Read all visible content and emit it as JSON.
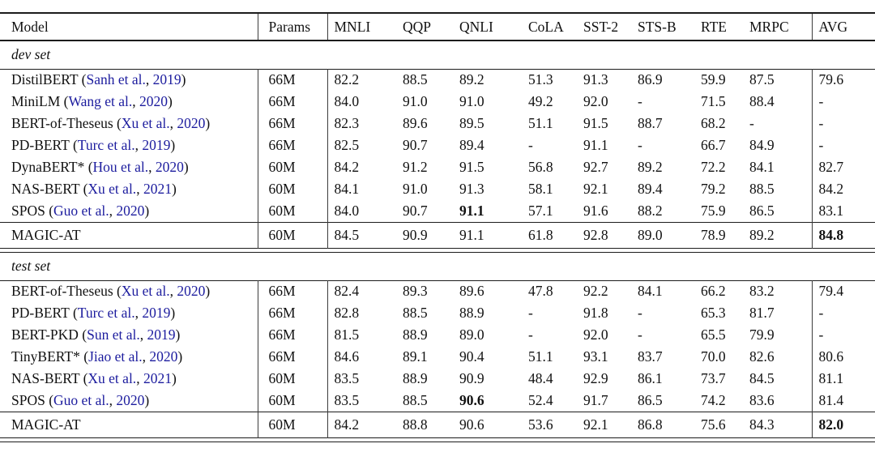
{
  "table": {
    "citation_color": "#1c1c9e",
    "columns": [
      "Model",
      "Params",
      "MNLI",
      "QQP",
      "QNLI",
      "CoLA",
      "SST-2",
      "STS-B",
      "RTE",
      "MRPC",
      "AVG"
    ],
    "sections": [
      {
        "label": "dev set",
        "rows": [
          {
            "model": "DistilBERT",
            "cite": {
              "authors": "Sanh et al.",
              "year": "2019"
            },
            "params": "66M",
            "scores": [
              "82.2",
              "88.5",
              "89.2",
              "51.3",
              "91.3",
              "86.9",
              "59.9",
              "87.5"
            ],
            "avg": "79.6",
            "bold": [],
            "avg_bold": false
          },
          {
            "model": "MiniLM",
            "cite": {
              "authors": "Wang et al.",
              "year": "2020"
            },
            "params": "66M",
            "scores": [
              "84.0",
              "91.0",
              "91.0",
              "49.2",
              "92.0",
              "-",
              "71.5",
              "88.4"
            ],
            "avg": "-",
            "bold": [],
            "avg_bold": false
          },
          {
            "model": "BERT-of-Theseus",
            "cite": {
              "authors": "Xu et al.",
              "year": "2020"
            },
            "params": "66M",
            "scores": [
              "82.3",
              "89.6",
              "89.5",
              "51.1",
              "91.5",
              "88.7",
              "68.2",
              "-"
            ],
            "avg": "-",
            "bold": [],
            "avg_bold": false
          },
          {
            "model": "PD-BERT",
            "cite": {
              "authors": "Turc et al.",
              "year": "2019"
            },
            "params": "66M",
            "scores": [
              "82.5",
              "90.7",
              "89.4",
              "-",
              "91.1",
              "-",
              "66.7",
              "84.9"
            ],
            "avg": "-",
            "bold": [],
            "avg_bold": false
          },
          {
            "model": "DynaBERT*",
            "cite": {
              "authors": "Hou et al.",
              "year": "2020"
            },
            "params": "60M",
            "scores": [
              "84.2",
              "91.2",
              "91.5",
              "56.8",
              "92.7",
              "89.2",
              "72.2",
              "84.1"
            ],
            "avg": "82.7",
            "bold": [],
            "avg_bold": false
          },
          {
            "model": "NAS-BERT",
            "cite": {
              "authors": "Xu et al.",
              "year": "2021"
            },
            "params": "60M",
            "scores": [
              "84.1",
              "91.0",
              "91.3",
              "58.1",
              "92.1",
              "89.4",
              "79.2",
              "88.5"
            ],
            "avg": "84.2",
            "bold": [],
            "avg_bold": false
          },
          {
            "model": "SPOS",
            "cite": {
              "authors": "Guo et al.",
              "year": "2020"
            },
            "params": "60M",
            "scores": [
              "84.0",
              "90.7",
              "91.1",
              "57.1",
              "91.6",
              "88.2",
              "75.9",
              "86.5"
            ],
            "avg": "83.1",
            "bold": [
              2
            ],
            "avg_bold": false
          }
        ],
        "final_row": {
          "model": "MAGIC-AT",
          "cite": null,
          "params": "60M",
          "scores": [
            "84.5",
            "90.9",
            "91.1",
            "61.8",
            "92.8",
            "89.0",
            "78.9",
            "89.2"
          ],
          "avg": "84.8",
          "bold": [],
          "avg_bold": true
        }
      },
      {
        "label": "test set",
        "rows": [
          {
            "model": "BERT-of-Theseus",
            "cite": {
              "authors": "Xu et al.",
              "year": "2020"
            },
            "params": "66M",
            "scores": [
              "82.4",
              "89.3",
              "89.6",
              "47.8",
              "92.2",
              "84.1",
              "66.2",
              "83.2"
            ],
            "avg": "79.4",
            "bold": [],
            "avg_bold": false
          },
          {
            "model": "PD-BERT",
            "cite": {
              "authors": "Turc et al.",
              "year": "2019"
            },
            "params": "66M",
            "scores": [
              "82.8",
              "88.5",
              "88.9",
              "-",
              "91.8",
              "-",
              "65.3",
              "81.7"
            ],
            "avg": "-",
            "bold": [],
            "avg_bold": false
          },
          {
            "model": "BERT-PKD",
            "cite": {
              "authors": "Sun et al.",
              "year": "2019"
            },
            "params": "66M",
            "scores": [
              "81.5",
              "88.9",
              "89.0",
              "-",
              "92.0",
              "-",
              "65.5",
              "79.9"
            ],
            "avg": "-",
            "bold": [],
            "avg_bold": false
          },
          {
            "model": "TinyBERT*",
            "cite": {
              "authors": "Jiao et al.",
              "year": "2020"
            },
            "params": "66M",
            "scores": [
              "84.6",
              "89.1",
              "90.4",
              "51.1",
              "93.1",
              "83.7",
              "70.0",
              "82.6"
            ],
            "avg": "80.6",
            "bold": [],
            "avg_bold": false
          },
          {
            "model": "NAS-BERT",
            "cite": {
              "authors": "Xu et al.",
              "year": "2021"
            },
            "params": "60M",
            "scores": [
              "83.5",
              "88.9",
              "90.9",
              "48.4",
              "92.9",
              "86.1",
              "73.7",
              "84.5"
            ],
            "avg": "81.1",
            "bold": [],
            "avg_bold": false
          },
          {
            "model": "SPOS",
            "cite": {
              "authors": "Guo et al.",
              "year": "2020"
            },
            "params": "60M",
            "scores": [
              "83.5",
              "88.5",
              "90.6",
              "52.4",
              "91.7",
              "86.5",
              "74.2",
              "83.6"
            ],
            "avg": "81.4",
            "bold": [
              2
            ],
            "avg_bold": false
          }
        ],
        "final_row": {
          "model": "MAGIC-AT",
          "cite": null,
          "params": "60M",
          "scores": [
            "84.2",
            "88.8",
            "90.6",
            "53.6",
            "92.1",
            "86.8",
            "75.6",
            "84.3"
          ],
          "avg": "82.0",
          "bold": [],
          "avg_bold": true
        }
      }
    ]
  }
}
